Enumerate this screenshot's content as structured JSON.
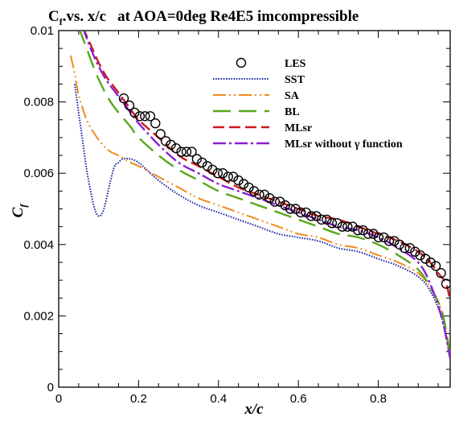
{
  "chart_data": {
    "type": "line",
    "title": {
      "main_prefix": "C",
      "main_sub": "f",
      "main_rest": ".vs. x/c",
      "conditions": "at AOA=0deg Re4E5 imcompressible"
    },
    "xlabel": "x/c",
    "ylabel": {
      "base": "C",
      "sub": "f"
    },
    "xlim": [
      0,
      0.98
    ],
    "ylim": [
      0,
      0.01
    ],
    "x_ticks": [
      0,
      0.2,
      0.4,
      0.6,
      0.8
    ],
    "x_tick_labels": [
      "0",
      "0.2",
      "0.4",
      "0.6",
      "0.8"
    ],
    "y_ticks": [
      0,
      0.002,
      0.004,
      0.006,
      0.008,
      0.01
    ],
    "y_tick_labels": [
      "0",
      "0.002",
      "0.004",
      "0.006",
      "0.008",
      "0.01"
    ],
    "grid": false,
    "legend_position": "top-right",
    "series": [
      {
        "name": "LES",
        "style": "markers",
        "marker": "circle",
        "color": "#000000",
        "x": [
          0.163,
          0.177,
          0.19,
          0.203,
          0.216,
          0.229,
          0.242,
          0.255,
          0.268,
          0.281,
          0.294,
          0.307,
          0.32,
          0.333,
          0.346,
          0.359,
          0.372,
          0.385,
          0.398,
          0.411,
          0.424,
          0.437,
          0.45,
          0.463,
          0.476,
          0.489,
          0.502,
          0.515,
          0.528,
          0.541,
          0.554,
          0.567,
          0.58,
          0.593,
          0.606,
          0.619,
          0.632,
          0.645,
          0.658,
          0.671,
          0.684,
          0.697,
          0.71,
          0.723,
          0.736,
          0.749,
          0.762,
          0.775,
          0.788,
          0.801,
          0.814,
          0.827,
          0.84,
          0.853,
          0.866,
          0.879,
          0.892,
          0.905,
          0.918,
          0.931,
          0.944,
          0.957,
          0.97
        ],
        "y": [
          0.0081,
          0.0079,
          0.0077,
          0.0076,
          0.0076,
          0.0076,
          0.0074,
          0.0071,
          0.0069,
          0.0068,
          0.0067,
          0.0066,
          0.0066,
          0.0066,
          0.0064,
          0.0063,
          0.0062,
          0.0061,
          0.006,
          0.006,
          0.0059,
          0.0059,
          0.0058,
          0.0057,
          0.0056,
          0.0055,
          0.0054,
          0.0054,
          0.0053,
          0.0052,
          0.0052,
          0.0051,
          0.005,
          0.005,
          0.0049,
          0.0049,
          0.0048,
          0.0048,
          0.0047,
          0.0047,
          0.0046,
          0.0046,
          0.0045,
          0.0045,
          0.0045,
          0.0044,
          0.0044,
          0.0043,
          0.0043,
          0.0042,
          0.0042,
          0.0041,
          0.0041,
          0.004,
          0.0039,
          0.0039,
          0.0038,
          0.0037,
          0.0036,
          0.0035,
          0.0034,
          0.0032,
          0.0029
        ]
      },
      {
        "name": "SST",
        "style": "dotted",
        "color": "#1f2aa8",
        "x": [
          0.04,
          0.05,
          0.06,
          0.07,
          0.08,
          0.09,
          0.1,
          0.11,
          0.12,
          0.13,
          0.14,
          0.15,
          0.16,
          0.18,
          0.2,
          0.22,
          0.25,
          0.3,
          0.35,
          0.4,
          0.45,
          0.5,
          0.55,
          0.6,
          0.65,
          0.7,
          0.75,
          0.8,
          0.85,
          0.9,
          0.93,
          0.96,
          0.98
        ],
        "y": [
          0.0085,
          0.0077,
          0.0069,
          0.0061,
          0.0055,
          0.005,
          0.0048,
          0.0049,
          0.0053,
          0.0058,
          0.0062,
          0.0063,
          0.0064,
          0.0064,
          0.0063,
          0.0061,
          0.0058,
          0.0054,
          0.0051,
          0.0049,
          0.0047,
          0.0045,
          0.0043,
          0.0042,
          0.0041,
          0.0039,
          0.0038,
          0.0036,
          0.0034,
          0.0031,
          0.0027,
          0.0019,
          0.0008
        ]
      },
      {
        "name": "SA",
        "style": "dash-dot-dot",
        "color": "#f08a1c",
        "x": [
          0.03,
          0.04,
          0.05,
          0.07,
          0.09,
          0.11,
          0.13,
          0.15,
          0.18,
          0.2,
          0.25,
          0.3,
          0.35,
          0.4,
          0.45,
          0.5,
          0.55,
          0.6,
          0.65,
          0.7,
          0.75,
          0.8,
          0.85,
          0.9,
          0.93,
          0.96,
          0.98
        ],
        "y": [
          0.0093,
          0.0088,
          0.0082,
          0.0075,
          0.0071,
          0.0068,
          0.0066,
          0.0065,
          0.0063,
          0.0062,
          0.0059,
          0.0056,
          0.0053,
          0.0051,
          0.0049,
          0.0047,
          0.0045,
          0.0043,
          0.0042,
          0.004,
          0.0039,
          0.0037,
          0.0035,
          0.0032,
          0.0028,
          0.0021,
          0.0008
        ]
      },
      {
        "name": "BL",
        "style": "long-dash",
        "color": "#5aa61a",
        "x": [
          0.05,
          0.07,
          0.09,
          0.11,
          0.13,
          0.15,
          0.18,
          0.2,
          0.25,
          0.3,
          0.35,
          0.4,
          0.45,
          0.5,
          0.55,
          0.6,
          0.65,
          0.7,
          0.75,
          0.8,
          0.85,
          0.9,
          0.93,
          0.96,
          0.98
        ],
        "y": [
          0.0101,
          0.0095,
          0.0089,
          0.0084,
          0.008,
          0.0077,
          0.0073,
          0.007,
          0.0065,
          0.0061,
          0.0058,
          0.0055,
          0.0053,
          0.0051,
          0.0049,
          0.0047,
          0.0045,
          0.0043,
          0.0042,
          0.004,
          0.0037,
          0.0033,
          0.0028,
          0.0021,
          0.0009
        ]
      },
      {
        "name": "MLsr",
        "style": "dashed",
        "color": "#cc1a1a",
        "x": [
          0.06,
          0.08,
          0.1,
          0.12,
          0.14,
          0.16,
          0.18,
          0.2,
          0.25,
          0.3,
          0.35,
          0.4,
          0.45,
          0.5,
          0.55,
          0.6,
          0.65,
          0.7,
          0.75,
          0.8,
          0.85,
          0.9,
          0.93,
          0.95,
          0.97,
          0.98
        ],
        "y": [
          0.0101,
          0.0096,
          0.0091,
          0.0087,
          0.0084,
          0.0081,
          0.0078,
          0.0075,
          0.007,
          0.0065,
          0.0062,
          0.0059,
          0.0056,
          0.0054,
          0.0052,
          0.005,
          0.0048,
          0.0047,
          0.0045,
          0.0043,
          0.0041,
          0.0038,
          0.0035,
          0.0032,
          0.0029,
          0.0024
        ]
      },
      {
        "name": "MLsr without γ function",
        "style": "dash-dot",
        "color": "#8a1fd0",
        "x": [
          0.06,
          0.08,
          0.1,
          0.12,
          0.14,
          0.16,
          0.18,
          0.2,
          0.25,
          0.3,
          0.35,
          0.4,
          0.45,
          0.5,
          0.55,
          0.6,
          0.65,
          0.7,
          0.75,
          0.8,
          0.85,
          0.9,
          0.93,
          0.96,
          0.98
        ],
        "y": [
          0.0101,
          0.0095,
          0.009,
          0.0086,
          0.0083,
          0.008,
          0.0077,
          0.0074,
          0.0068,
          0.0063,
          0.006,
          0.0057,
          0.0055,
          0.0053,
          0.0051,
          0.0049,
          0.0047,
          0.0045,
          0.0044,
          0.0042,
          0.0039,
          0.0035,
          0.0029,
          0.0019,
          0.0008
        ]
      }
    ]
  }
}
